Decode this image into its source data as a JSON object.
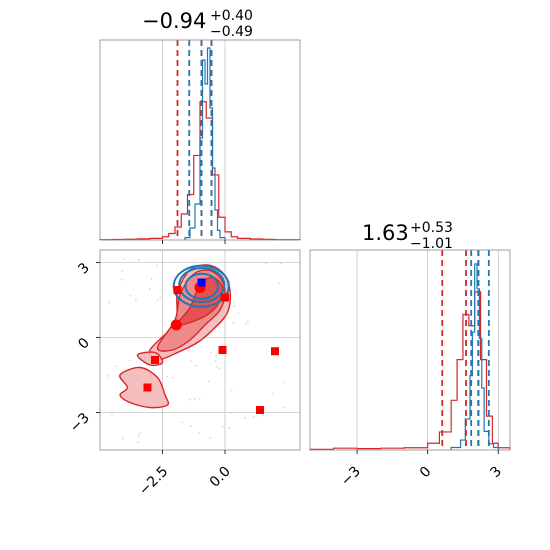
{
  "colors": {
    "red": "#d62728",
    "blue": "#1f77b4",
    "marker_red": "#ff0000",
    "marker_blue": "#0000ff",
    "grid": "#b0b0b0"
  },
  "titles": {
    "p1": {
      "median": "−0.94",
      "upper": "+0.40",
      "lower": "−0.49"
    },
    "p2": {
      "median": "1.63",
      "upper": "+0.53",
      "lower": "−1.01"
    }
  },
  "chart_data": [
    {
      "type": "histogram",
      "panel": "marginal-1",
      "xlim": [
        -5.0,
        3.0
      ],
      "grid": true,
      "series": [
        {
          "color": "#d62728",
          "bin_edges": [
            -5.0,
            -4.5,
            -4.0,
            -3.5,
            -3.0,
            -2.5,
            -2.25,
            -2.0,
            -1.75,
            -1.5,
            -1.25,
            -1.0,
            -0.75,
            -0.5,
            -0.25,
            0.0,
            0.25,
            0.5,
            1.0,
            1.5,
            2.0,
            3.0
          ],
          "heights": [
            0.2,
            0.3,
            0.5,
            0.7,
            1.0,
            2.0,
            4,
            8,
            16,
            28,
            52,
            85,
            75,
            40,
            14,
            5,
            2,
            1,
            0.6,
            0.4,
            0.2
          ]
        },
        {
          "color": "#1f77b4",
          "bin_edges": [
            -1.6,
            -1.4,
            -1.2,
            -1.0,
            -0.9,
            -0.8,
            -0.7,
            -0.6,
            -0.5,
            -0.4,
            -0.3,
            -0.2,
            0.0
          ],
          "heights": [
            2,
            10,
            30,
            85,
            150,
            130,
            160,
            110,
            60,
            25,
            8,
            2
          ]
        }
      ],
      "quantiles": {
        "red": [
          -1.9,
          -0.94,
          -0.54
        ],
        "blue": [
          -1.43,
          -0.94,
          -0.54
        ]
      }
    },
    {
      "type": "histogram",
      "panel": "marginal-2",
      "xlim": [
        -5.0,
        3.5
      ],
      "grid": true,
      "x_ticks": [
        "−3",
        "0",
        "3"
      ],
      "series": [
        {
          "color": "#d62728",
          "bin_edges": [
            -5.0,
            -4.0,
            -3.0,
            -2.0,
            -1.0,
            0.0,
            0.5,
            1.0,
            1.25,
            1.5,
            1.75,
            2.0,
            2.25,
            2.5,
            2.75,
            3.0,
            3.5
          ],
          "heights": [
            0.3,
            0.8,
            0.6,
            0.8,
            1.0,
            3,
            8,
            22,
            40,
            60,
            55,
            70,
            40,
            15,
            3,
            1
          ]
        },
        {
          "color": "#1f77b4",
          "bin_edges": [
            1.0,
            1.4,
            1.6,
            1.8,
            1.9,
            2.0,
            2.1,
            2.2,
            2.3,
            2.4,
            2.6,
            2.8,
            3.0
          ],
          "heights": [
            2,
            8,
            25,
            60,
            95,
            150,
            130,
            90,
            50,
            15,
            5,
            2
          ]
        }
      ],
      "quantiles": {
        "red": [
          0.62,
          1.63,
          2.16
        ],
        "blue": [
          1.85,
          2.15,
          2.6
        ]
      }
    },
    {
      "type": "contour-scatter",
      "panel": "joint",
      "xlim": [
        -5.0,
        3.0
      ],
      "ylim": [
        -4.5,
        3.5
      ],
      "x_ticks": [
        "−2.5",
        "0.0"
      ],
      "y_ticks": [
        "3",
        "0",
        "−3"
      ],
      "grid": true,
      "red_contours": [
        {
          "level": "outer",
          "fill": "#f4b8b8",
          "points": [
            [
              -3.0,
              -0.5
            ],
            [
              -2.0,
              0.6
            ],
            [
              -1.9,
              1.8
            ],
            [
              -1.4,
              2.7
            ],
            [
              -0.7,
              2.9
            ],
            [
              -0.1,
              2.6
            ],
            [
              0.2,
              1.9
            ],
            [
              0.1,
              1.0
            ],
            [
              -0.5,
              0.3
            ],
            [
              -1.1,
              -0.2
            ],
            [
              -1.9,
              -0.6
            ],
            [
              -2.7,
              -0.9
            ]
          ]
        },
        {
          "level": "middle",
          "fill": "#ec8585",
          "points": [
            [
              -2.7,
              -0.4
            ],
            [
              -2.0,
              0.7
            ],
            [
              -1.8,
              1.7
            ],
            [
              -1.3,
              2.5
            ],
            [
              -0.7,
              2.7
            ],
            [
              -0.2,
              2.4
            ],
            [
              0.0,
              1.8
            ],
            [
              -0.2,
              1.1
            ],
            [
              -0.8,
              0.5
            ],
            [
              -1.4,
              -0.1
            ],
            [
              -2.1,
              -0.5
            ]
          ]
        },
        {
          "level": "inner",
          "fill": "#e24a4a",
          "points": [
            [
              -1.9,
              0.5
            ],
            [
              -1.4,
              1.2
            ],
            [
              -1.0,
              2.1
            ],
            [
              -0.5,
              2.4
            ],
            [
              -0.1,
              2.0
            ],
            [
              -0.3,
              1.3
            ],
            [
              -0.9,
              0.8
            ]
          ]
        },
        {
          "level": "island",
          "fill": "#f4b8b8",
          "points": [
            [
              -4.2,
              -1.5
            ],
            [
              -3.4,
              -1.2
            ],
            [
              -2.7,
              -1.6
            ],
            [
              -2.4,
              -2.3
            ],
            [
              -2.3,
              -2.7
            ],
            [
              -3.0,
              -2.8
            ],
            [
              -3.8,
              -2.6
            ],
            [
              -4.2,
              -2.3
            ],
            [
              -3.9,
              -2.0
            ]
          ]
        },
        {
          "level": "small",
          "fill": "#f4b8b8",
          "points": [
            [
              -3.5,
              -0.7
            ],
            [
              -2.8,
              -0.6
            ],
            [
              -2.5,
              -1.0
            ],
            [
              -3.0,
              -1.1
            ]
          ]
        }
      ],
      "blue_contours": [
        {
          "cx": -0.93,
          "cy": 2.05,
          "rx": 0.65,
          "ry": 0.5
        },
        {
          "cx": -0.93,
          "cy": 2.1,
          "rx": 0.9,
          "ry": 0.68
        },
        {
          "cx": -0.95,
          "cy": 2.05,
          "rx": 1.1,
          "ry": 0.82
        }
      ],
      "red_markers": [
        {
          "shape": "square",
          "x": -2.8,
          "y": -0.9
        },
        {
          "shape": "square",
          "x": -3.1,
          "y": -2.0
        },
        {
          "shape": "square",
          "x": -1.9,
          "y": 1.9
        },
        {
          "shape": "square",
          "x": 0.0,
          "y": 1.6
        },
        {
          "shape": "square",
          "x": -0.1,
          "y": -0.5
        },
        {
          "shape": "square",
          "x": 2.0,
          "y": -0.55
        },
        {
          "shape": "square",
          "x": 1.4,
          "y": -2.9
        },
        {
          "shape": "circle",
          "x": -1.95,
          "y": 0.5
        },
        {
          "shape": "circle",
          "x": -1.0,
          "y": 2.0
        }
      ],
      "blue_markers": [
        {
          "shape": "square",
          "x": -0.94,
          "y": 2.2
        }
      ]
    }
  ]
}
